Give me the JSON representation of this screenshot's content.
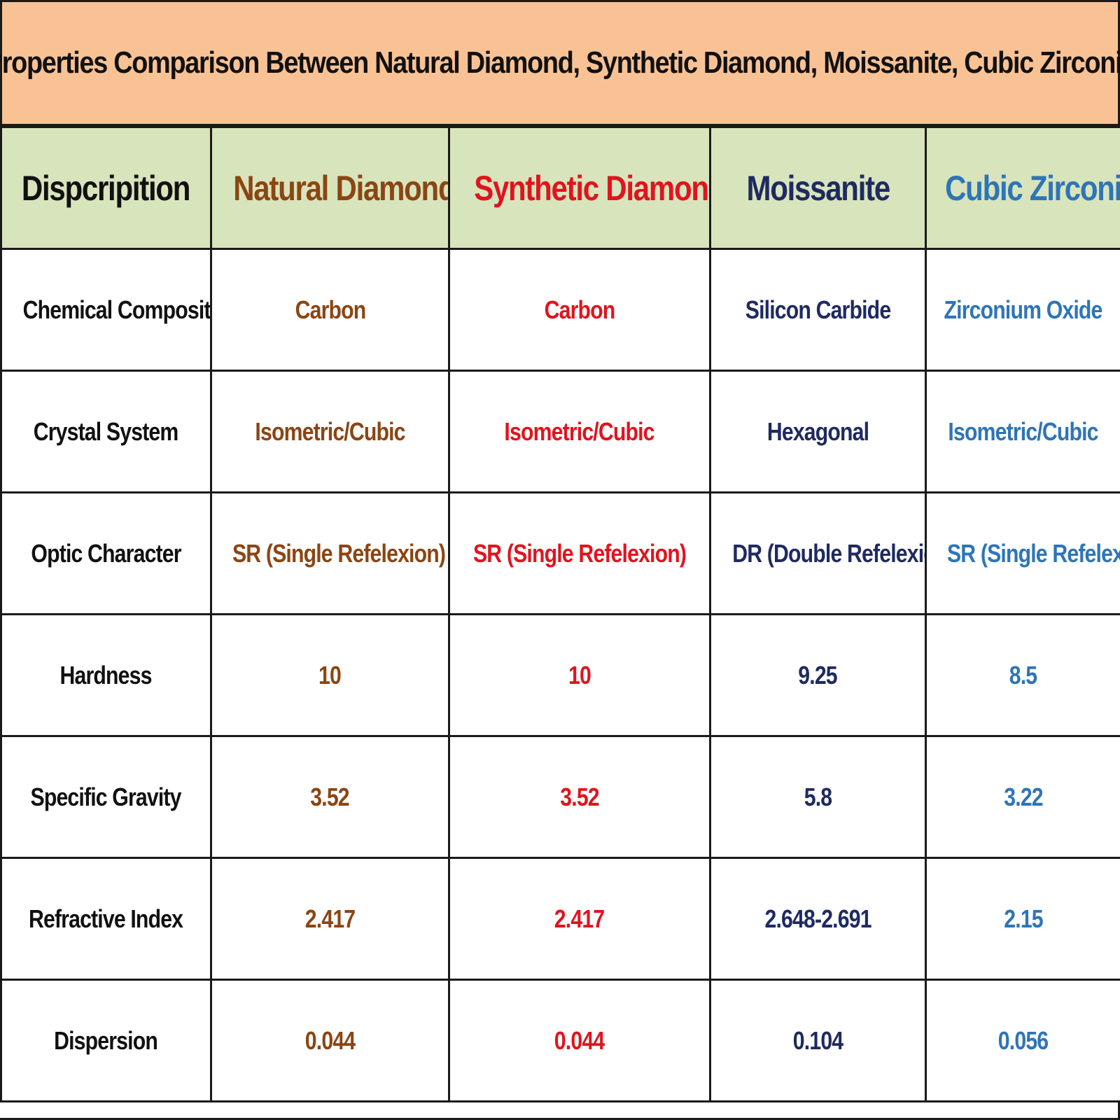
{
  "title": "Properties Comparison Between Natural Diamond, Synthetic Diamond, Moissanite, Cubic Zirconia",
  "colors": {
    "title_background": "#f9c295",
    "header_background": "#d8e4bc",
    "description": "#111111",
    "natural_diamond": "#8b4513",
    "synthetic_diamond": "#e0141e",
    "moissanite": "#1f2a60",
    "cubic_zirconia": "#2e75b6"
  },
  "headers": {
    "description": "Dispcripition",
    "natural_diamond": "Natural Diamond",
    "synthetic_diamond": "Synthetic Diamond",
    "moissanite": "Moissanite",
    "cubic_zirconia": "Cubic Zirconia"
  },
  "rows": [
    {
      "property": "Chemical Composition",
      "natural_diamond": "Carbon",
      "synthetic_diamond": "Carbon",
      "moissanite": "Silicon Carbide",
      "cubic_zirconia": "Zirconium Oxide"
    },
    {
      "property": "Crystal System",
      "natural_diamond": "Isometric/Cubic",
      "synthetic_diamond": "Isometric/Cubic",
      "moissanite": "Hexagonal",
      "cubic_zirconia": "Isometric/Cubic"
    },
    {
      "property": "Optic Character",
      "natural_diamond": "SR (Single Refelexion)",
      "synthetic_diamond": "SR (Single Refelexion)",
      "moissanite": "DR (Double Refelexion)",
      "cubic_zirconia": "SR (Single Refelexion)"
    },
    {
      "property": "Hardness",
      "natural_diamond": "10",
      "synthetic_diamond": "10",
      "moissanite": "9.25",
      "cubic_zirconia": "8.5"
    },
    {
      "property": "Specific Gravity",
      "natural_diamond": "3.52",
      "synthetic_diamond": "3.52",
      "moissanite": "5.8",
      "cubic_zirconia": "3.22"
    },
    {
      "property": "Refractive Index",
      "natural_diamond": "2.417",
      "synthetic_diamond": "2.417",
      "moissanite": "2.648-2.691",
      "cubic_zirconia": "2.15"
    },
    {
      "property": "Dispersion",
      "natural_diamond": "0.044",
      "synthetic_diamond": "0.044",
      "moissanite": "0.104",
      "cubic_zirconia": "0.056"
    }
  ]
}
